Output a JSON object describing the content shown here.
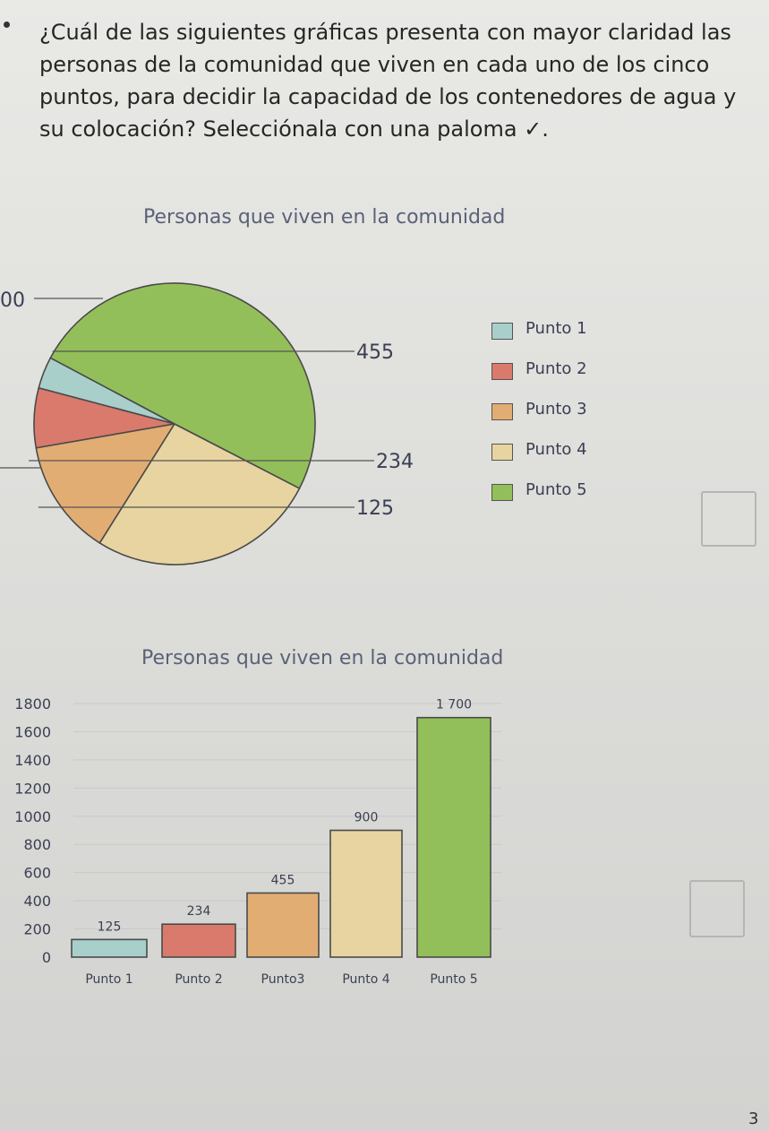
{
  "question": {
    "text": "¿Cuál de las siguientes gráficas presenta con mayor claridad las personas de la comunidad que viven en cada uno de los cinco puntos, para decidir la capacidad de los contenedores de agua y su colocación? Selecciónala con una paloma ✓."
  },
  "colors": {
    "punto1": "#a9cfcb",
    "punto2": "#d97a6c",
    "punto3": "#e2ad73",
    "punto4": "#e8d4a0",
    "punto5": "#93bf5a"
  },
  "chart_data": [
    {
      "type": "pie",
      "title": "Personas que viven en la comunidad",
      "legend_position": "right",
      "categories": [
        "Punto 1",
        "Punto 2",
        "Punto 3",
        "Punto 4",
        "Punto 5"
      ],
      "values": [
        125,
        234,
        455,
        900,
        1700
      ],
      "callouts": [
        {
          "category": "Punto 3",
          "text": "455"
        },
        {
          "category": "Punto 2",
          "text": "234"
        },
        {
          "category": "Punto 1",
          "text": "125"
        }
      ],
      "fragment_label": "00"
    },
    {
      "type": "bar",
      "title": "Personas que viven en la comunidad",
      "categories": [
        "Punto 1",
        "Punto 2",
        "Punto3",
        "Punto 4",
        "Punto 5"
      ],
      "values": [
        125,
        234,
        455,
        900,
        1700
      ],
      "data_labels": [
        "125",
        "234",
        "455",
        "900",
        "1 700"
      ],
      "yticks": [
        "0",
        "200",
        "400",
        "600",
        "800",
        "1000",
        "1200",
        "1400",
        "1600",
        "1800"
      ],
      "ylim": [
        0,
        1800
      ],
      "grid": true
    }
  ],
  "page_number": "3"
}
